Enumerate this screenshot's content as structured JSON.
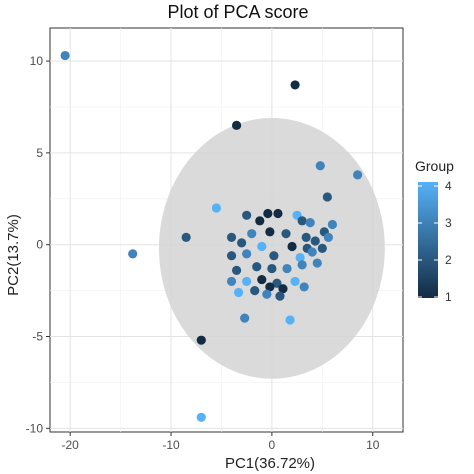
{
  "chart_data": {
    "type": "scatter",
    "title": "Plot of PCA score",
    "xlabel": "PC1(36.72%)",
    "ylabel": "PC2(13.7%)",
    "xlim": [
      -22,
      13
    ],
    "ylim": [
      -10.2,
      11.8
    ],
    "x_ticks": [
      -20,
      -10,
      0,
      10
    ],
    "x_tick_labels": [
      "-20",
      "-10",
      "0",
      "10"
    ],
    "y_ticks": [
      -10,
      -5,
      0,
      5,
      10
    ],
    "y_tick_labels": [
      "-10",
      "-5",
      "0",
      "5",
      "10"
    ],
    "grid": true,
    "legend": {
      "title": "Group",
      "position": "right",
      "ticks": [
        "1",
        "2",
        "3",
        "4"
      ],
      "color_low": "#132b43",
      "color_high": "#56b1f7"
    },
    "ellipse": {
      "center": [
        0,
        -0.2
      ],
      "rx": 11.2,
      "ry": 7.1,
      "color": "#d3d3d3"
    },
    "points": [
      {
        "x": -20.5,
        "y": 10.3,
        "group": 3
      },
      {
        "x": 2.3,
        "y": 8.7,
        "group": 1
      },
      {
        "x": -3.5,
        "y": 6.5,
        "group": 1
      },
      {
        "x": 4.8,
        "y": 4.3,
        "group": 3
      },
      {
        "x": 8.5,
        "y": 3.8,
        "group": 3
      },
      {
        "x": 5.5,
        "y": 2.6,
        "group": 2
      },
      {
        "x": -5.5,
        "y": 2.0,
        "group": 4
      },
      {
        "x": -13.8,
        "y": -0.5,
        "group": 3
      },
      {
        "x": -8.5,
        "y": 0.4,
        "group": 2
      },
      {
        "x": -7.0,
        "y": -5.2,
        "group": 1
      },
      {
        "x": -7.0,
        "y": -9.4,
        "group": 4
      },
      {
        "x": 1.8,
        "y": -4.1,
        "group": 4
      },
      {
        "x": -2.7,
        "y": -4.0,
        "group": 3
      },
      {
        "x": -0.4,
        "y": 1.7,
        "group": 1
      },
      {
        "x": -2.5,
        "y": 1.6,
        "group": 2
      },
      {
        "x": -1.2,
        "y": 1.3,
        "group": 1
      },
      {
        "x": 0.6,
        "y": 1.7,
        "group": 1
      },
      {
        "x": 2.5,
        "y": 1.6,
        "group": 4
      },
      {
        "x": 3.0,
        "y": 1.3,
        "group": 2
      },
      {
        "x": 3.8,
        "y": 1.2,
        "group": 3
      },
      {
        "x": 6.0,
        "y": 1.1,
        "group": 3
      },
      {
        "x": 5.2,
        "y": 0.7,
        "group": 2
      },
      {
        "x": -4.0,
        "y": 0.4,
        "group": 2
      },
      {
        "x": -2.0,
        "y": 0.6,
        "group": 3
      },
      {
        "x": -0.2,
        "y": 0.7,
        "group": 1
      },
      {
        "x": 1.4,
        "y": 0.6,
        "group": 2
      },
      {
        "x": 3.4,
        "y": 0.4,
        "group": 2
      },
      {
        "x": 4.3,
        "y": 0.2,
        "group": 2
      },
      {
        "x": 5.6,
        "y": 0.4,
        "group": 3
      },
      {
        "x": -3.0,
        "y": 0.1,
        "group": 2
      },
      {
        "x": -1.0,
        "y": -0.1,
        "group": 4
      },
      {
        "x": 2.0,
        "y": -0.1,
        "group": 1
      },
      {
        "x": 3.5,
        "y": -0.2,
        "group": 2
      },
      {
        "x": 5.0,
        "y": -0.2,
        "group": 2
      },
      {
        "x": -4.0,
        "y": -0.6,
        "group": 2
      },
      {
        "x": -2.5,
        "y": -0.5,
        "group": 3
      },
      {
        "x": 0.2,
        "y": -0.6,
        "group": 2
      },
      {
        "x": 2.8,
        "y": -0.7,
        "group": 4
      },
      {
        "x": 4.0,
        "y": -0.4,
        "group": 3
      },
      {
        "x": -3.5,
        "y": -1.4,
        "group": 2
      },
      {
        "x": -1.5,
        "y": -1.2,
        "group": 2
      },
      {
        "x": 0.0,
        "y": -1.3,
        "group": 2
      },
      {
        "x": 1.5,
        "y": -1.3,
        "group": 3
      },
      {
        "x": 3.0,
        "y": -1.1,
        "group": 3
      },
      {
        "x": -4.0,
        "y": -2.0,
        "group": 3
      },
      {
        "x": -2.5,
        "y": -2.0,
        "group": 4
      },
      {
        "x": -1.0,
        "y": -1.9,
        "group": 1
      },
      {
        "x": 0.5,
        "y": -2.1,
        "group": 2
      },
      {
        "x": 2.3,
        "y": -2.0,
        "group": 4
      },
      {
        "x": -3.3,
        "y": -2.6,
        "group": 4
      },
      {
        "x": -1.7,
        "y": -2.5,
        "group": 2
      },
      {
        "x": -0.2,
        "y": -2.3,
        "group": 1
      },
      {
        "x": 1.1,
        "y": -2.4,
        "group": 1
      },
      {
        "x": 3.2,
        "y": -2.3,
        "group": 3
      },
      {
        "x": -0.5,
        "y": -2.7,
        "group": 3
      },
      {
        "x": 0.8,
        "y": -2.8,
        "group": 2
      },
      {
        "x": 4.5,
        "y": -1.0,
        "group": 3
      }
    ]
  }
}
